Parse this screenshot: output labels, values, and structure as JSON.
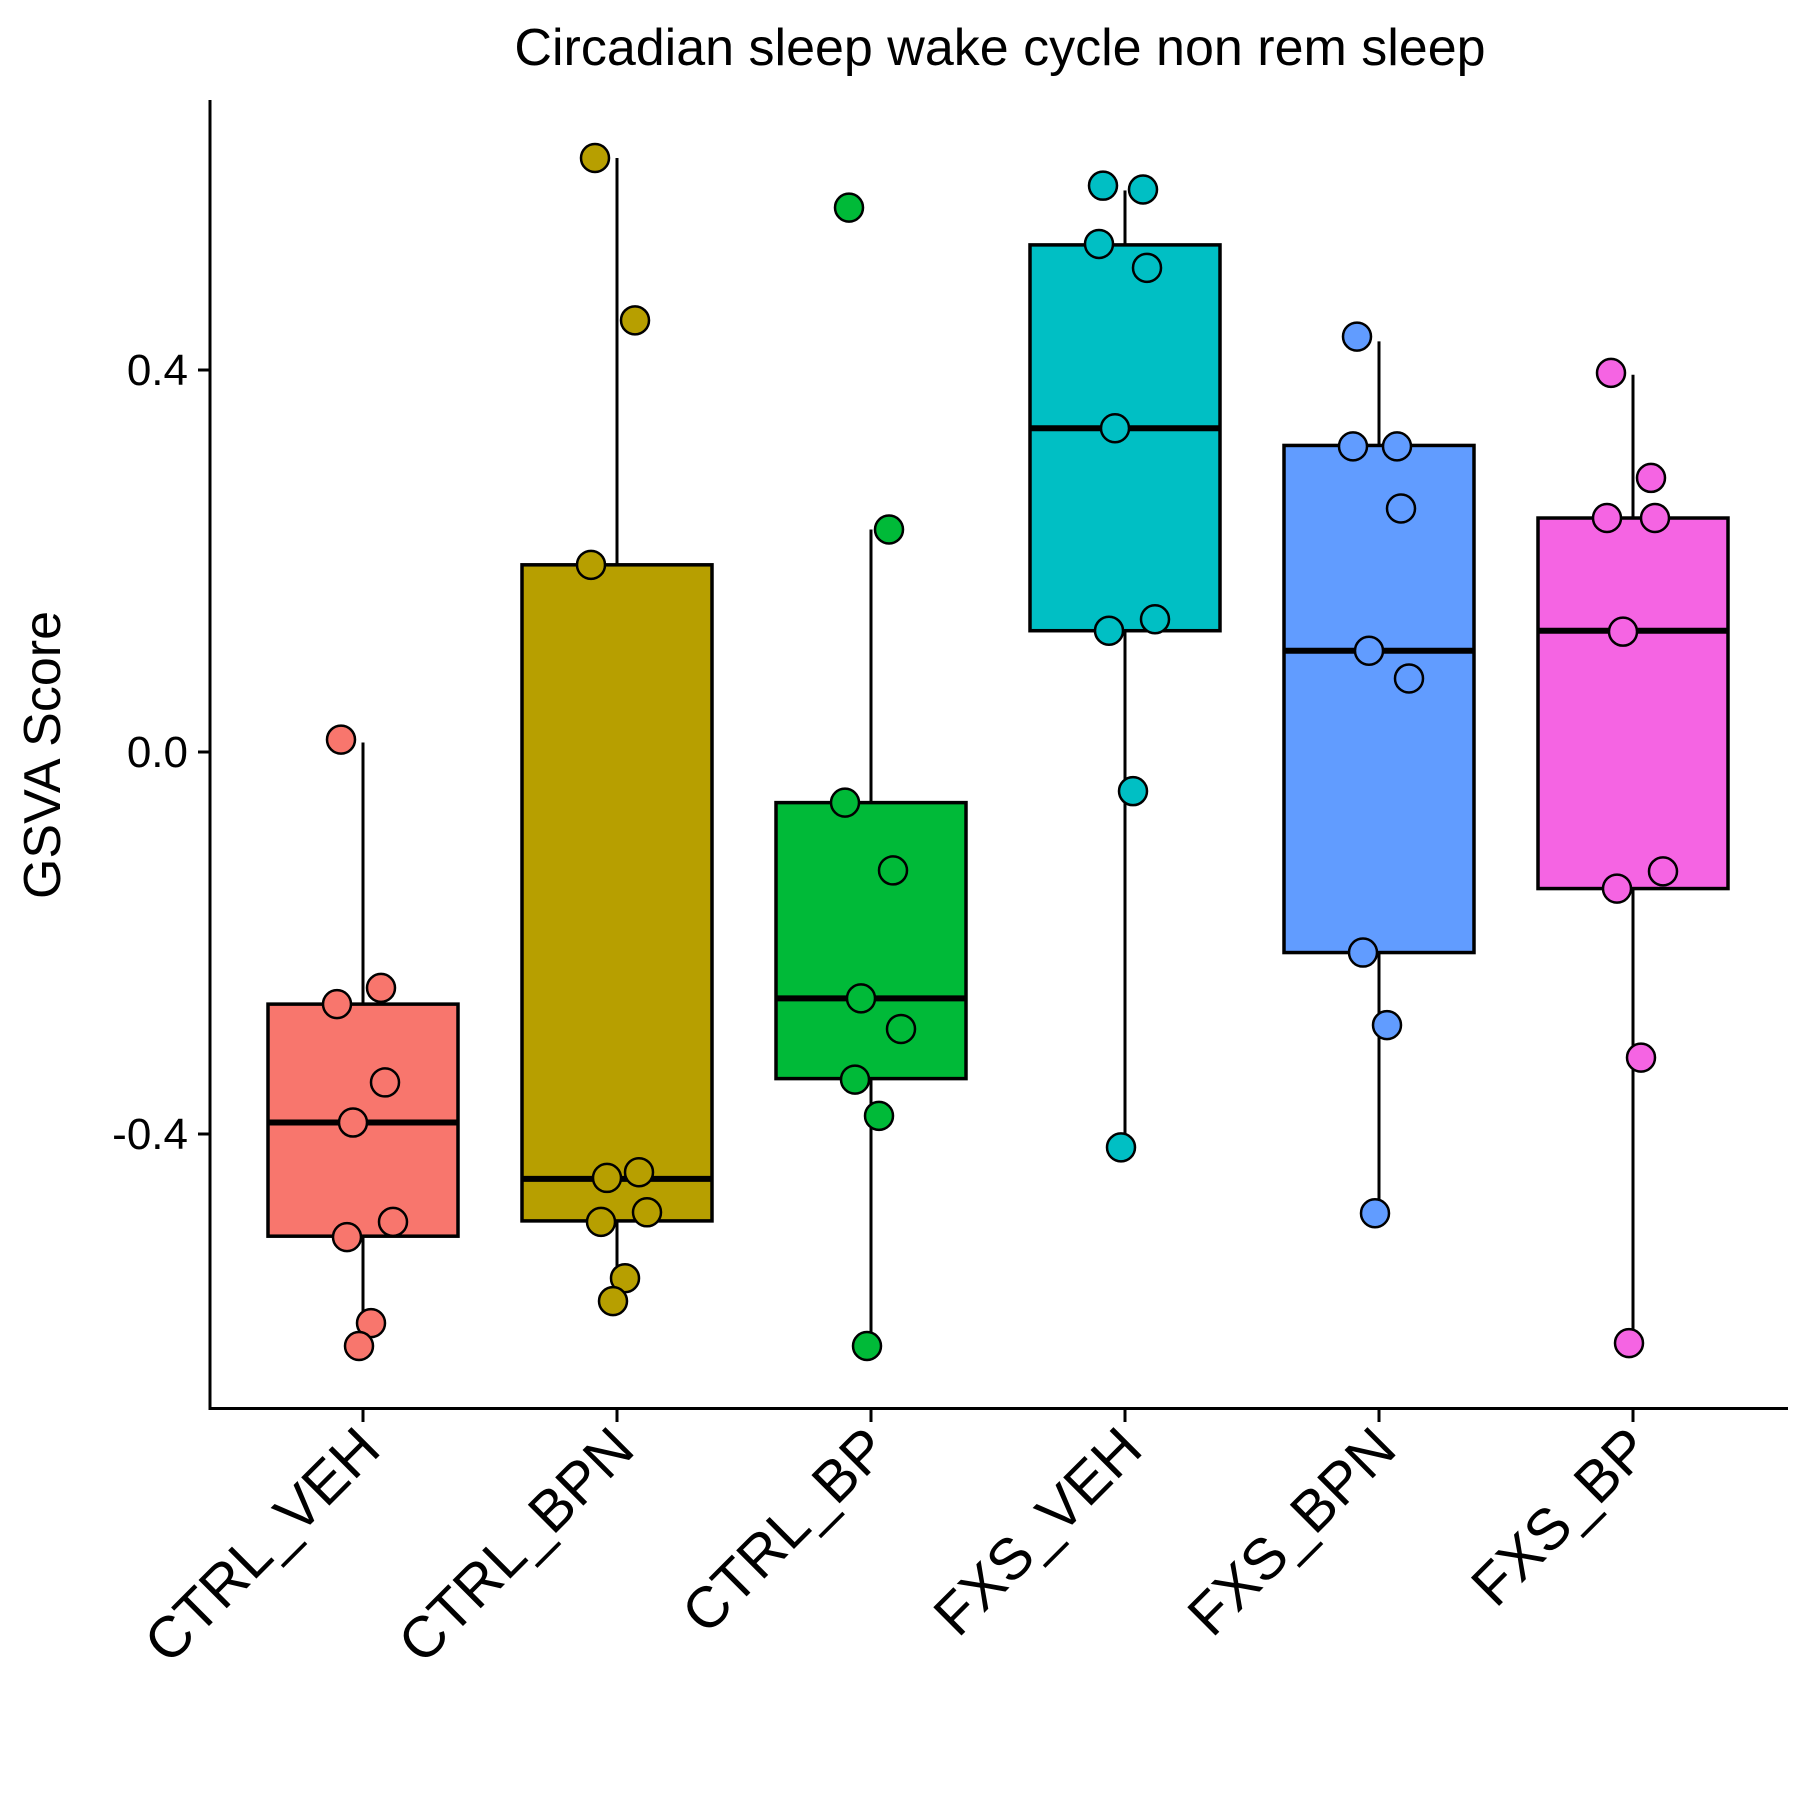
{
  "chart_data": {
    "type": "box",
    "title": "Circadian sleep wake cycle non rem sleep",
    "xlabel": "",
    "ylabel": "GSVA Score",
    "ylim": [
      -0.68,
      0.68
    ],
    "yticks": [
      0.4,
      0.0,
      -0.4
    ],
    "ytick_labels": [
      "0.4",
      "0.0",
      "-0.4"
    ],
    "grid": false,
    "legend": "none",
    "categories": [
      "CTRL_VEH",
      "CTRL_BPN",
      "CTRL_BP",
      "FXS_VEH",
      "FXS_BPN",
      "FXS_BP"
    ],
    "series": [
      {
        "fill": "#F8766D",
        "box": {
          "whisker_low": -0.62,
          "q1": -0.507,
          "median": -0.388,
          "q3": -0.264,
          "whisker_high": 0.01
        },
        "points": [
          0.013,
          -0.247,
          -0.264,
          -0.346,
          -0.388,
          -0.492,
          -0.508,
          -0.598,
          -0.622
        ]
      },
      {
        "fill": "#B79F00",
        "box": {
          "whisker_low": -0.572,
          "q1": -0.491,
          "median": -0.447,
          "q3": 0.196,
          "whisker_high": 0.622
        },
        "points": [
          0.622,
          0.452,
          0.196,
          -0.44,
          -0.446,
          -0.482,
          -0.492,
          -0.551,
          -0.575
        ]
      },
      {
        "fill": "#00BA38",
        "box": {
          "whisker_low": -0.622,
          "q1": -0.342,
          "median": -0.258,
          "q3": -0.053,
          "whisker_high": 0.233
        },
        "points": [
          0.57,
          0.233,
          -0.053,
          -0.124,
          -0.258,
          -0.29,
          -0.343,
          -0.381,
          -0.622
        ]
      },
      {
        "fill": "#00BFC4",
        "box": {
          "whisker_low": -0.412,
          "q1": 0.127,
          "median": 0.339,
          "q3": 0.531,
          "whisker_high": 0.588
        },
        "points": [
          0.593,
          0.589,
          0.532,
          0.507,
          0.339,
          0.139,
          0.127,
          -0.041,
          -0.414
        ]
      },
      {
        "fill": "#619CFF",
        "box": {
          "whisker_low": -0.482,
          "q1": -0.21,
          "median": 0.106,
          "q3": 0.321,
          "whisker_high": 0.43
        },
        "points": [
          0.435,
          0.32,
          0.32,
          0.255,
          0.106,
          0.077,
          -0.21,
          -0.286,
          -0.483
        ]
      },
      {
        "fill": "#F564E3",
        "box": {
          "whisker_low": -0.617,
          "q1": -0.143,
          "median": 0.127,
          "q3": 0.245,
          "whisker_high": 0.395
        },
        "points": [
          0.397,
          0.287,
          0.245,
          0.245,
          0.126,
          -0.125,
          -0.143,
          -0.32,
          -0.619
        ]
      }
    ]
  }
}
